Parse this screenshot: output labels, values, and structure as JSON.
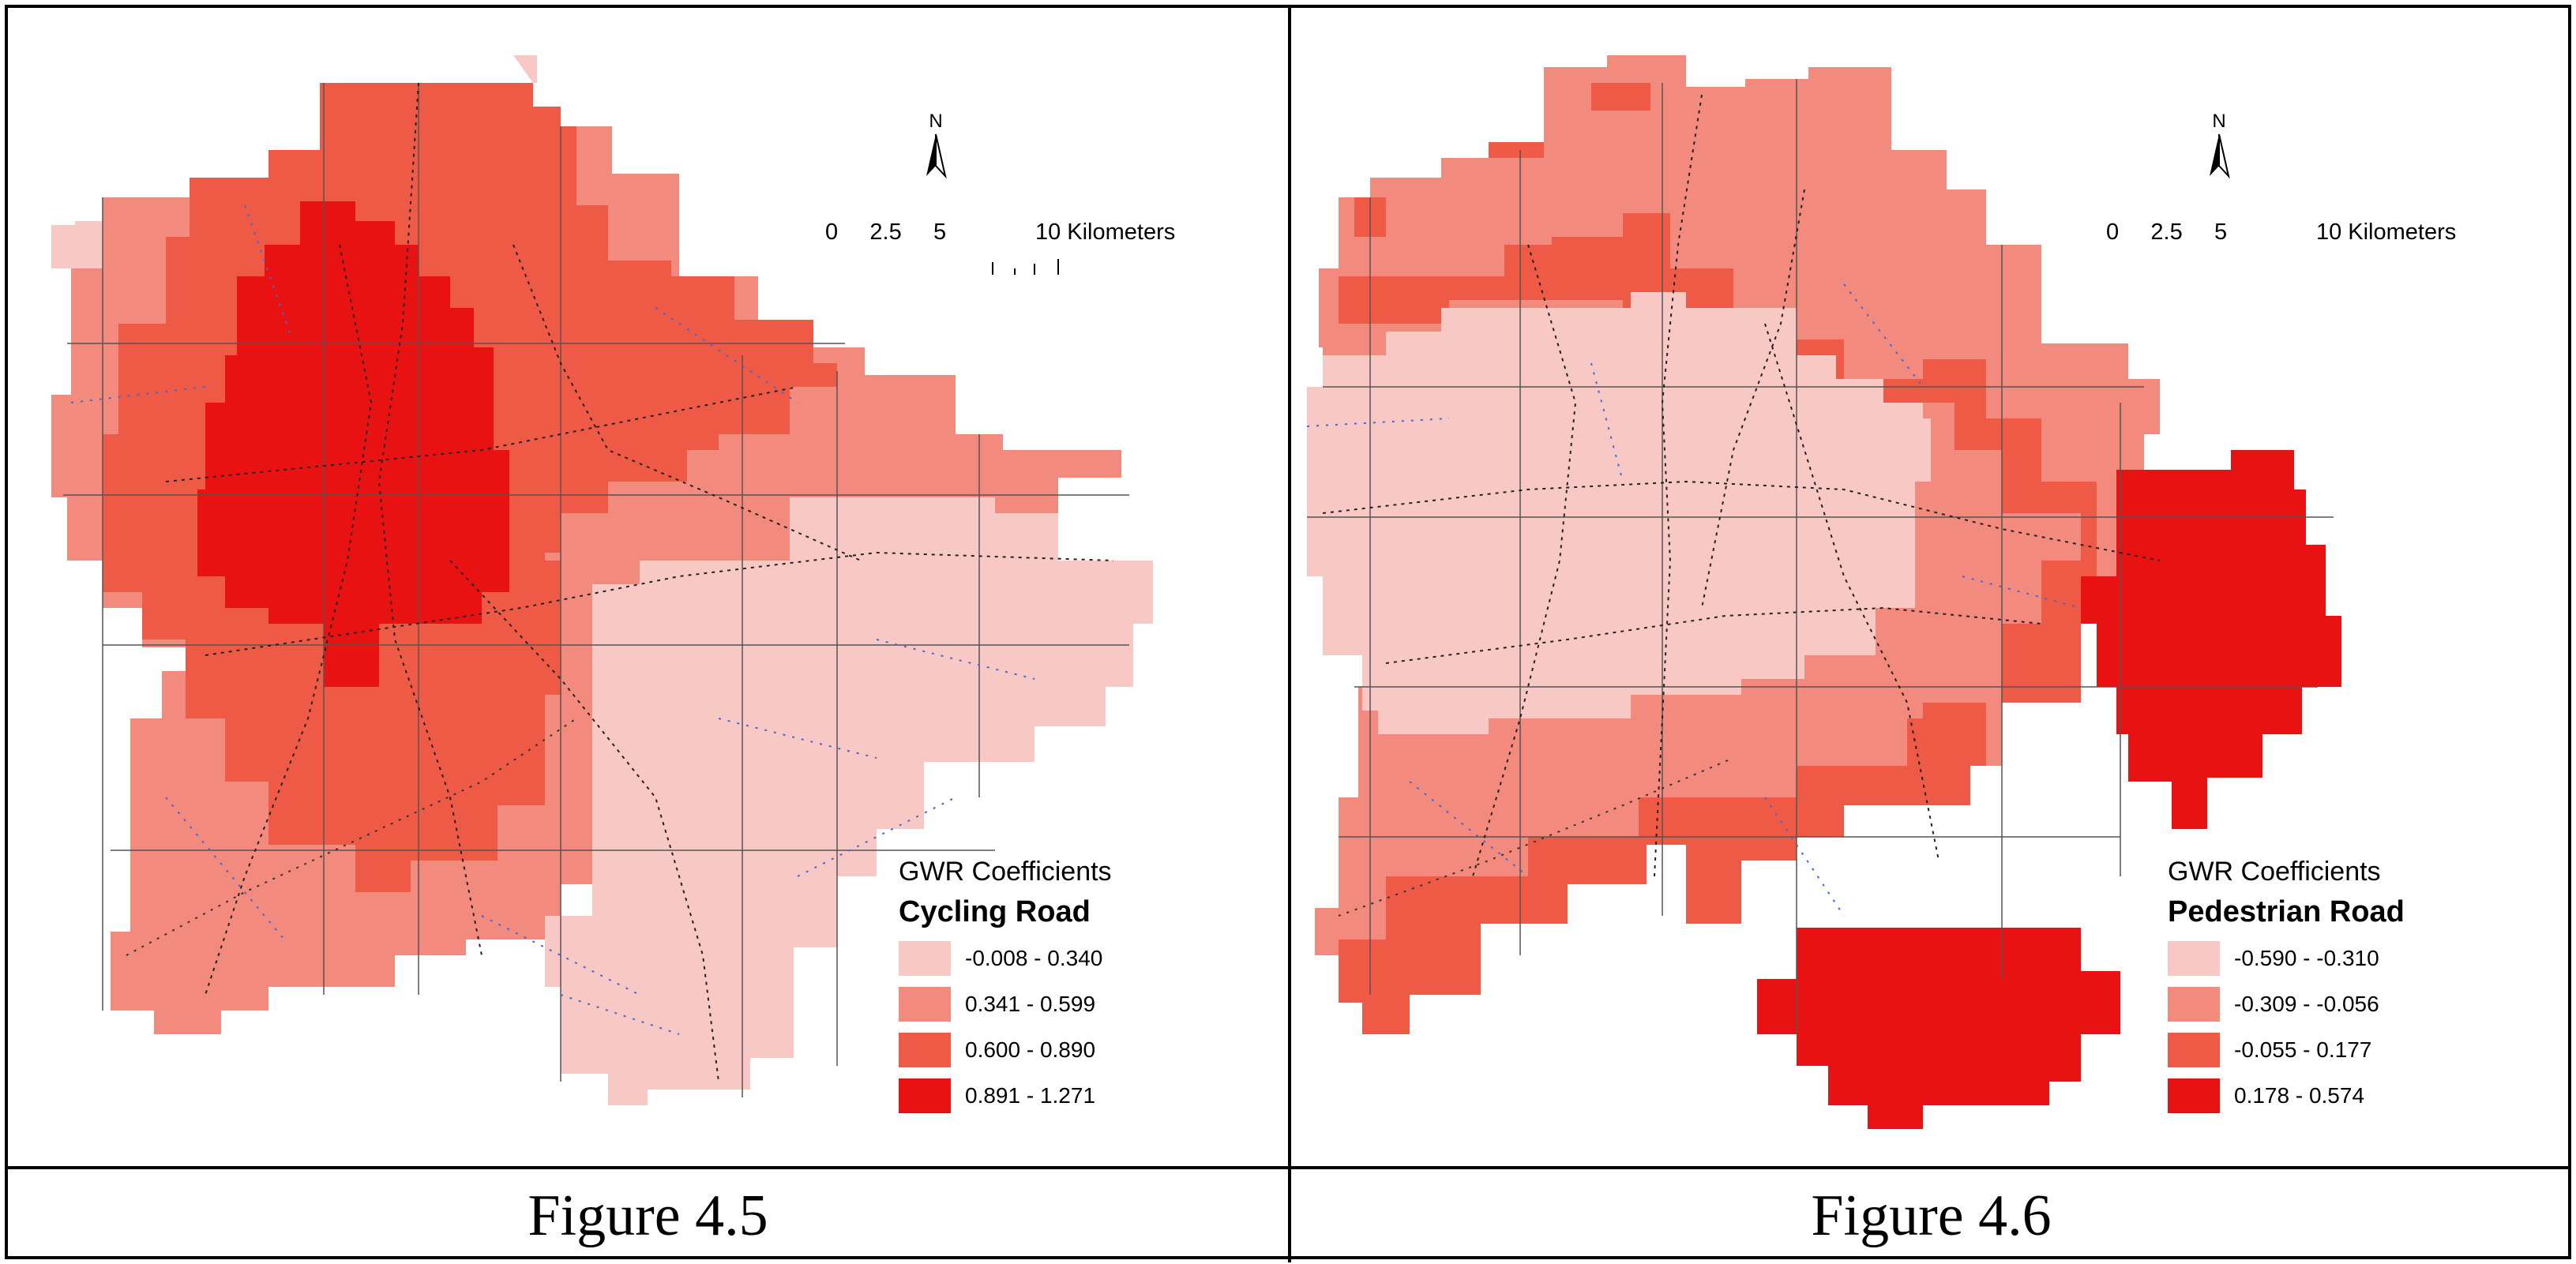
{
  "figures": [
    {
      "caption": "Figure 4.5",
      "north_label": "N",
      "scale_text": "0     2.5     5              10 Kilometers",
      "legend": {
        "title": "GWR Coefficients",
        "variable": "Cycling Road",
        "classes": [
          {
            "label": "-0.008 - 0.340",
            "color": "#f8c8c5"
          },
          {
            "label": "0.341 - 0.599",
            "color": "#f38a7e"
          },
          {
            "label": "0.600 - 0.890",
            "color": "#ee5a45"
          },
          {
            "label": "0.891 - 1.271",
            "color": "#e81212"
          }
        ]
      }
    },
    {
      "caption": "Figure 4.6",
      "north_label": "N",
      "scale_text": "0     2.5     5              10 Kilometers",
      "legend": {
        "title": "GWR Coefficients",
        "variable": "Pedestrian Road",
        "classes": [
          {
            "label": "-0.590 - -0.310",
            "color": "#f8c8c5"
          },
          {
            "label": "-0.309 - -0.056",
            "color": "#f38a7e"
          },
          {
            "label": "-0.055 - 0.177",
            "color": "#ee5a45"
          },
          {
            "label": "0.178 - 0.574",
            "color": "#e81212"
          }
        ]
      }
    }
  ]
}
